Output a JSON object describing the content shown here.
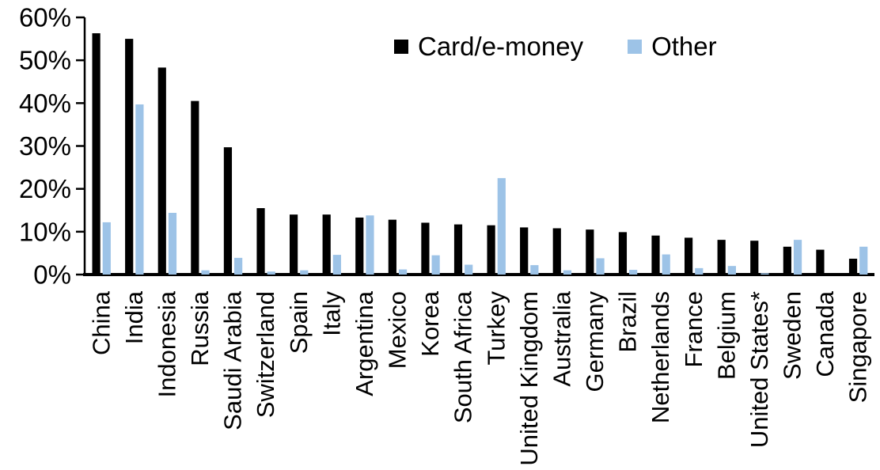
{
  "chart_data": {
    "type": "bar",
    "title": "",
    "xlabel": "",
    "ylabel": "",
    "ylim": [
      0,
      60
    ],
    "yticks": [
      0,
      10,
      20,
      30,
      40,
      50,
      60
    ],
    "ytick_suffix": "%",
    "grid": false,
    "legend_position": "top-center",
    "categories": [
      "China",
      "India",
      "Indonesia",
      "Russia",
      "Saudi Arabia",
      "Switzerland",
      "Spain",
      "Italy",
      "Argentina",
      "Mexico",
      "Korea",
      "South Africa",
      "Turkey",
      "United Kingdom",
      "Australia",
      "Germany",
      "Brazil",
      "Netherlands",
      "France",
      "Belgium",
      "United States*",
      "Sweden",
      "Canada",
      "Singapore"
    ],
    "series": [
      {
        "name": "Card/e-money",
        "color": "#000000",
        "values": [
          56.3,
          55.0,
          48.3,
          40.5,
          29.7,
          15.5,
          14.0,
          14.0,
          13.3,
          12.8,
          12.1,
          11.7,
          11.5,
          11.0,
          10.8,
          10.5,
          9.9,
          9.1,
          8.6,
          8.1,
          7.9,
          6.5,
          5.8,
          3.7
        ]
      },
      {
        "name": "Other",
        "color": "#9DC3E7",
        "values": [
          12.2,
          39.7,
          14.4,
          1.0,
          3.9,
          0.7,
          1.0,
          4.6,
          13.8,
          1.2,
          4.5,
          2.3,
          22.5,
          2.2,
          1.0,
          3.8,
          1.1,
          4.7,
          1.5,
          2.0,
          0.3,
          8.1,
          0.0,
          6.5
        ]
      }
    ]
  },
  "colors": {
    "axis": "#000000",
    "background": "#FFFFFF"
  }
}
